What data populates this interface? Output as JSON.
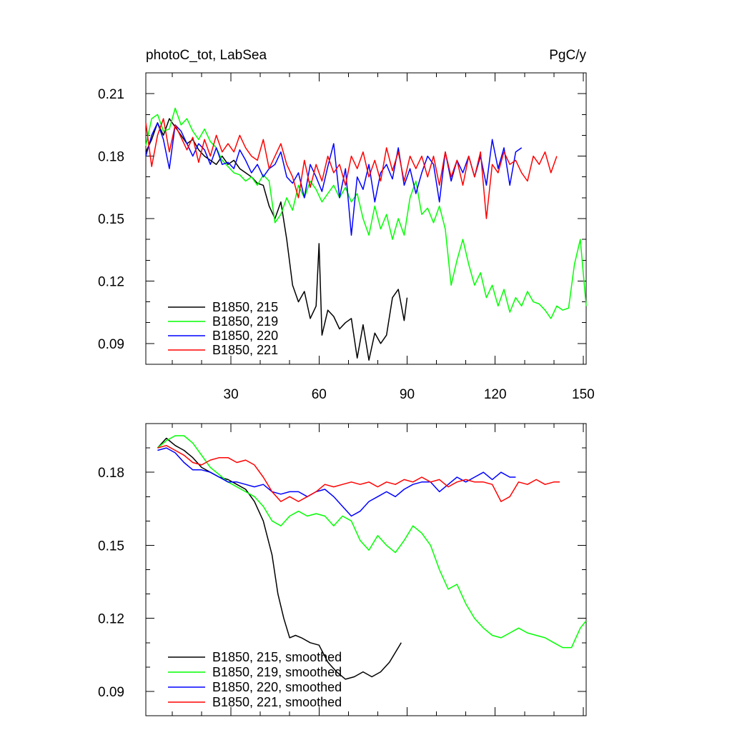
{
  "figure": {
    "title_left": "photoC_tot, LabSea",
    "title_right": "PgC/y"
  },
  "colors": {
    "215": "#000000",
    "219": "#00ff00",
    "220": "#0000ff",
    "221": "#ff0000"
  },
  "chart_data": [
    {
      "type": "line",
      "title": "photoC_tot, LabSea",
      "units": "PgC/y",
      "xlim": [
        1,
        151
      ],
      "ylim": [
        0.08,
        0.22
      ],
      "x_ticks": [
        30,
        60,
        90,
        120,
        150
      ],
      "y_ticks": [
        0.09,
        0.12,
        0.15,
        0.18,
        0.21
      ],
      "y_tick_labels": [
        "0.09",
        "0.12",
        "0.15",
        "0.18",
        "0.21"
      ],
      "x_tick_labels": [
        "30",
        "60",
        "90",
        "120",
        "150"
      ],
      "legend_position": "bottom-left",
      "series": [
        {
          "name": "B1850, 215",
          "color": "#000000",
          "x": [
            1,
            3,
            5,
            7,
            9,
            11,
            13,
            15,
            17,
            19,
            21,
            23,
            25,
            27,
            29,
            31,
            33,
            35,
            37,
            39,
            41,
            43,
            45,
            47,
            49,
            51,
            53,
            55,
            57,
            59,
            60,
            61,
            63,
            65,
            67,
            69,
            71,
            73,
            75,
            77,
            79,
            81,
            83,
            85,
            87,
            89,
            90
          ],
          "y": [
            0.182,
            0.188,
            0.196,
            0.19,
            0.198,
            0.194,
            0.19,
            0.186,
            0.188,
            0.183,
            0.18,
            0.178,
            0.176,
            0.18,
            0.176,
            0.178,
            0.174,
            0.172,
            0.17,
            0.167,
            0.166,
            0.156,
            0.15,
            0.158,
            0.14,
            0.118,
            0.11,
            0.115,
            0.102,
            0.108,
            0.138,
            0.094,
            0.106,
            0.103,
            0.097,
            0.1,
            0.102,
            0.083,
            0.099,
            0.082,
            0.095,
            0.09,
            0.094,
            0.112,
            0.116,
            0.101,
            0.112
          ]
        },
        {
          "name": "B1850, 219",
          "color": "#00ff00",
          "x": [
            1,
            3,
            5,
            7,
            9,
            11,
            13,
            15,
            17,
            19,
            21,
            23,
            25,
            27,
            29,
            31,
            33,
            35,
            37,
            39,
            41,
            43,
            45,
            47,
            49,
            51,
            53,
            55,
            57,
            59,
            61,
            63,
            65,
            67,
            69,
            71,
            73,
            75,
            77,
            79,
            81,
            83,
            85,
            87,
            89,
            91,
            93,
            95,
            97,
            99,
            101,
            103,
            105,
            107,
            109,
            111,
            113,
            115,
            117,
            119,
            121,
            123,
            125,
            127,
            129,
            131,
            133,
            135,
            137,
            139,
            141,
            143,
            145,
            147,
            149,
            151
          ],
          "y": [
            0.185,
            0.198,
            0.2,
            0.192,
            0.193,
            0.203,
            0.195,
            0.198,
            0.192,
            0.188,
            0.193,
            0.187,
            0.184,
            0.178,
            0.175,
            0.172,
            0.171,
            0.168,
            0.17,
            0.166,
            0.171,
            0.168,
            0.148,
            0.152,
            0.16,
            0.154,
            0.166,
            0.16,
            0.168,
            0.164,
            0.158,
            0.162,
            0.166,
            0.16,
            0.165,
            0.158,
            0.162,
            0.15,
            0.142,
            0.156,
            0.145,
            0.152,
            0.14,
            0.15,
            0.142,
            0.16,
            0.168,
            0.152,
            0.155,
            0.148,
            0.156,
            0.145,
            0.118,
            0.13,
            0.14,
            0.128,
            0.118,
            0.124,
            0.112,
            0.118,
            0.108,
            0.116,
            0.105,
            0.112,
            0.108,
            0.115,
            0.11,
            0.109,
            0.106,
            0.102,
            0.108,
            0.106,
            0.107,
            0.128,
            0.14,
            0.108
          ]
        },
        {
          "name": "B1850, 220",
          "color": "#0000ff",
          "x": [
            1,
            3,
            5,
            7,
            9,
            11,
            13,
            15,
            17,
            19,
            21,
            23,
            25,
            27,
            29,
            31,
            33,
            35,
            37,
            39,
            41,
            43,
            45,
            47,
            49,
            51,
            53,
            55,
            57,
            59,
            61,
            63,
            65,
            67,
            69,
            71,
            73,
            75,
            77,
            79,
            81,
            83,
            85,
            87,
            89,
            91,
            93,
            95,
            97,
            99,
            101,
            103,
            105,
            107,
            109,
            111,
            113,
            115,
            117,
            119,
            121,
            123,
            125,
            127,
            129
          ],
          "y": [
            0.18,
            0.19,
            0.196,
            0.188,
            0.174,
            0.195,
            0.192,
            0.186,
            0.18,
            0.186,
            0.183,
            0.176,
            0.184,
            0.176,
            0.177,
            0.174,
            0.183,
            0.178,
            0.172,
            0.176,
            0.17,
            0.174,
            0.176,
            0.182,
            0.17,
            0.167,
            0.172,
            0.16,
            0.176,
            0.17,
            0.163,
            0.175,
            0.186,
            0.16,
            0.174,
            0.142,
            0.17,
            0.164,
            0.176,
            0.158,
            0.172,
            0.176,
            0.169,
            0.184,
            0.166,
            0.174,
            0.162,
            0.172,
            0.18,
            0.176,
            0.158,
            0.182,
            0.168,
            0.178,
            0.172,
            0.18,
            0.17,
            0.18,
            0.166,
            0.188,
            0.174,
            0.184,
            0.166,
            0.182,
            0.184
          ]
        },
        {
          "name": "B1850, 221",
          "color": "#ff0000",
          "x": [
            1,
            3,
            5,
            7,
            9,
            11,
            13,
            15,
            17,
            19,
            21,
            23,
            25,
            27,
            29,
            31,
            33,
            35,
            37,
            39,
            41,
            43,
            45,
            47,
            49,
            51,
            53,
            55,
            57,
            59,
            61,
            63,
            65,
            67,
            69,
            71,
            73,
            75,
            77,
            79,
            81,
            83,
            85,
            87,
            89,
            91,
            93,
            95,
            97,
            99,
            101,
            103,
            105,
            107,
            109,
            111,
            113,
            115,
            117,
            119,
            121,
            123,
            125,
            127,
            129,
            131,
            133,
            135,
            137,
            139,
            141
          ],
          "y": [
            0.196,
            0.175,
            0.19,
            0.198,
            0.182,
            0.195,
            0.189,
            0.183,
            0.189,
            0.177,
            0.188,
            0.18,
            0.19,
            0.182,
            0.186,
            0.182,
            0.19,
            0.184,
            0.18,
            0.178,
            0.188,
            0.174,
            0.18,
            0.186,
            0.176,
            0.17,
            0.16,
            0.178,
            0.165,
            0.176,
            0.168,
            0.18,
            0.172,
            0.176,
            0.166,
            0.18,
            0.174,
            0.182,
            0.17,
            0.178,
            0.168,
            0.184,
            0.173,
            0.182,
            0.168,
            0.18,
            0.174,
            0.18,
            0.17,
            0.18,
            0.166,
            0.182,
            0.17,
            0.178,
            0.166,
            0.18,
            0.17,
            0.182,
            0.15,
            0.176,
            0.172,
            0.182,
            0.176,
            0.178,
            0.172,
            0.168,
            0.18,
            0.176,
            0.182,
            0.172,
            0.18
          ]
        }
      ]
    },
    {
      "type": "line",
      "xlim": [
        1,
        151
      ],
      "ylim": [
        0.08,
        0.2
      ],
      "x_ticks": [
        30,
        60,
        90,
        120,
        150
      ],
      "y_ticks": [
        0.09,
        0.12,
        0.15,
        0.18
      ],
      "y_tick_labels": [
        "0.09",
        "0.12",
        "0.15",
        "0.18"
      ],
      "legend_position": "bottom-left",
      "series": [
        {
          "name": "B1850, 215, smoothed",
          "color": "#000000",
          "x": [
            5,
            8,
            11,
            14,
            17,
            20,
            23,
            26,
            29,
            32,
            35,
            38,
            41,
            44,
            46,
            48,
            50,
            52,
            54,
            57,
            60,
            63,
            66,
            69,
            72,
            75,
            78,
            81,
            84,
            86,
            88
          ],
          "y": [
            0.19,
            0.194,
            0.191,
            0.189,
            0.186,
            0.182,
            0.18,
            0.178,
            0.177,
            0.175,
            0.173,
            0.168,
            0.16,
            0.146,
            0.13,
            0.12,
            0.112,
            0.113,
            0.112,
            0.11,
            0.109,
            0.102,
            0.098,
            0.095,
            0.096,
            0.098,
            0.096,
            0.098,
            0.102,
            0.106,
            0.11
          ]
        },
        {
          "name": "B1850, 219, smoothed",
          "color": "#00ff00",
          "x": [
            5,
            8,
            11,
            14,
            17,
            20,
            23,
            26,
            29,
            32,
            35,
            38,
            41,
            44,
            47,
            50,
            53,
            56,
            59,
            62,
            65,
            68,
            71,
            74,
            77,
            80,
            83,
            86,
            89,
            92,
            95,
            98,
            101,
            104,
            107,
            110,
            113,
            116,
            119,
            122,
            125,
            128,
            131,
            134,
            137,
            140,
            143,
            146,
            149,
            151
          ],
          "y": [
            0.19,
            0.193,
            0.195,
            0.195,
            0.192,
            0.187,
            0.182,
            0.179,
            0.176,
            0.174,
            0.172,
            0.17,
            0.166,
            0.16,
            0.158,
            0.162,
            0.164,
            0.162,
            0.163,
            0.162,
            0.158,
            0.162,
            0.16,
            0.152,
            0.148,
            0.154,
            0.15,
            0.147,
            0.152,
            0.158,
            0.155,
            0.15,
            0.14,
            0.132,
            0.134,
            0.126,
            0.12,
            0.116,
            0.113,
            0.112,
            0.114,
            0.116,
            0.114,
            0.113,
            0.112,
            0.11,
            0.108,
            0.108,
            0.116,
            0.119
          ]
        },
        {
          "name": "B1850, 220, smoothed",
          "color": "#0000ff",
          "x": [
            5,
            8,
            11,
            14,
            17,
            20,
            23,
            26,
            29,
            32,
            35,
            38,
            41,
            44,
            47,
            50,
            53,
            56,
            59,
            62,
            65,
            68,
            71,
            74,
            77,
            80,
            83,
            86,
            89,
            92,
            95,
            98,
            101,
            104,
            107,
            110,
            113,
            116,
            119,
            122,
            125,
            127
          ],
          "y": [
            0.189,
            0.19,
            0.188,
            0.184,
            0.181,
            0.181,
            0.18,
            0.178,
            0.176,
            0.176,
            0.175,
            0.174,
            0.175,
            0.172,
            0.171,
            0.172,
            0.172,
            0.17,
            0.172,
            0.173,
            0.17,
            0.166,
            0.162,
            0.164,
            0.168,
            0.17,
            0.172,
            0.17,
            0.173,
            0.175,
            0.176,
            0.176,
            0.172,
            0.175,
            0.178,
            0.176,
            0.178,
            0.18,
            0.177,
            0.18,
            0.178,
            0.178
          ]
        },
        {
          "name": "B1850, 221, smoothed",
          "color": "#ff0000",
          "x": [
            5,
            8,
            11,
            14,
            17,
            20,
            23,
            26,
            29,
            32,
            35,
            38,
            41,
            44,
            47,
            50,
            53,
            56,
            59,
            62,
            65,
            68,
            71,
            74,
            77,
            80,
            83,
            86,
            89,
            92,
            95,
            98,
            101,
            104,
            107,
            110,
            113,
            116,
            119,
            122,
            125,
            128,
            131,
            134,
            137,
            140,
            142
          ],
          "y": [
            0.19,
            0.191,
            0.189,
            0.187,
            0.184,
            0.183,
            0.185,
            0.186,
            0.186,
            0.184,
            0.185,
            0.183,
            0.178,
            0.172,
            0.168,
            0.17,
            0.168,
            0.17,
            0.172,
            0.175,
            0.174,
            0.175,
            0.176,
            0.175,
            0.176,
            0.174,
            0.176,
            0.175,
            0.177,
            0.176,
            0.178,
            0.176,
            0.177,
            0.174,
            0.176,
            0.177,
            0.176,
            0.176,
            0.175,
            0.168,
            0.17,
            0.176,
            0.175,
            0.177,
            0.175,
            0.176,
            0.176
          ]
        }
      ]
    }
  ]
}
